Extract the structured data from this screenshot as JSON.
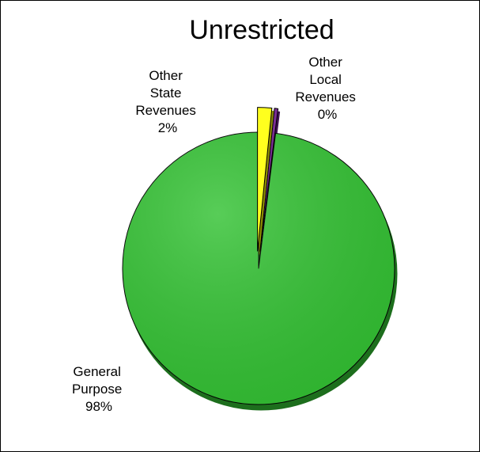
{
  "chart_data": {
    "type": "pie",
    "title": "Unrestricted",
    "start_angle_deg": 0,
    "direction": "counterclockwise",
    "slices": [
      {
        "label_lines": [
          "General",
          "Purpose"
        ],
        "percent_label": "98%",
        "value": 98.0,
        "color": "#33c233",
        "edge_color": "#1d6e1d",
        "exploded": false
      },
      {
        "label_lines": [
          "Other",
          "State",
          "Revenues"
        ],
        "percent_label": "2%",
        "value": 1.6,
        "color": "#ffff1e",
        "edge_color": "#8c8c00",
        "exploded": true
      },
      {
        "label_lines": [
          "Other",
          "Local",
          "Revenues"
        ],
        "percent_label": "0%",
        "value": 0.4,
        "color": "#7a2d94",
        "edge_color": "#3d1050",
        "exploded": true
      }
    ]
  }
}
